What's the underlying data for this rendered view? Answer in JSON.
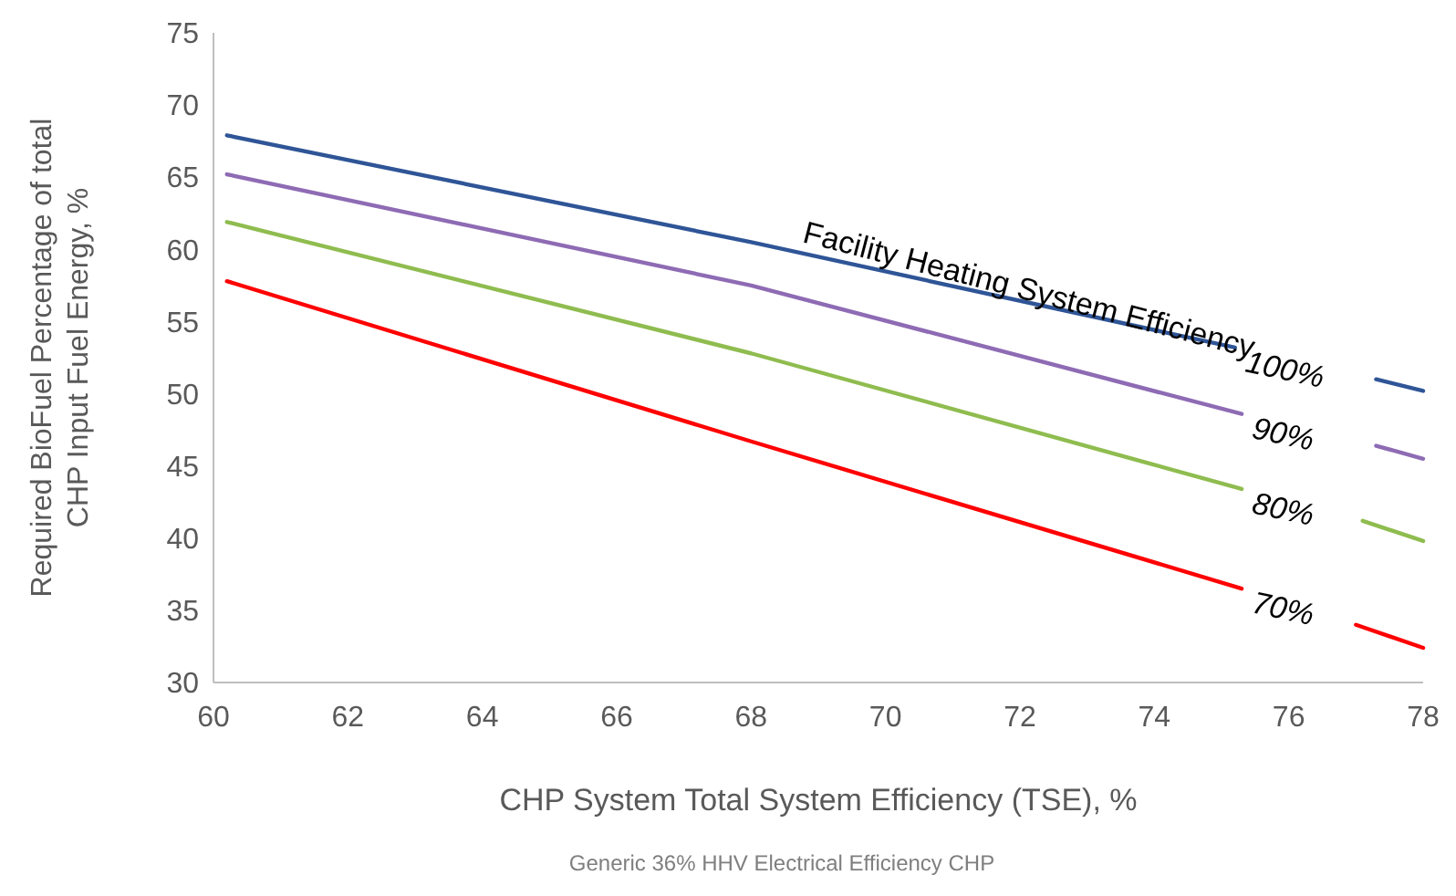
{
  "chart_data": {
    "type": "line",
    "xlabel": "CHP System Total System Efficiency (TSE), %",
    "ylabel": "Required BioFuel Percentage of total CHP Input Fuel Energy, %",
    "legend_title": "Facility Heating System Efficiency",
    "annotations": [
      "Generic 36% HHV Electrical Efficiency CHP"
    ],
    "xlim": [
      60,
      78
    ],
    "xticks": [
      60,
      62,
      64,
      66,
      68,
      70,
      72,
      74,
      76,
      78
    ],
    "ylim": [
      30,
      75
    ],
    "yticks": [
      30,
      35,
      40,
      45,
      50,
      55,
      60,
      65,
      70,
      75
    ],
    "grid": false,
    "marker": "none",
    "line_style": "solid",
    "series": [
      {
        "name": "100%",
        "color": "#2f5597",
        "x": [
          60.2,
          68,
          75.2,
          76.2,
          77.3,
          78
        ],
        "values": [
          67.9,
          60.5,
          53.2,
          null,
          51.0,
          50.2
        ]
      },
      {
        "name": "90%",
        "color": "#8e6bb4",
        "x": [
          60.2,
          68,
          75.3,
          76.2,
          77.3,
          78
        ],
        "values": [
          65.2,
          57.5,
          48.6,
          null,
          46.4,
          45.5
        ]
      },
      {
        "name": "80%",
        "color": "#8fbc4f",
        "x": [
          60.2,
          68,
          75.3,
          76.2,
          77.1,
          78
        ],
        "values": [
          61.9,
          52.8,
          43.4,
          null,
          41.2,
          39.8
        ]
      },
      {
        "name": "70%",
        "color": "#ff0000",
        "x": [
          60.2,
          68,
          75.3,
          76.2,
          77,
          78
        ],
        "values": [
          57.8,
          46.7,
          36.5,
          null,
          34.0,
          32.4
        ]
      }
    ]
  }
}
